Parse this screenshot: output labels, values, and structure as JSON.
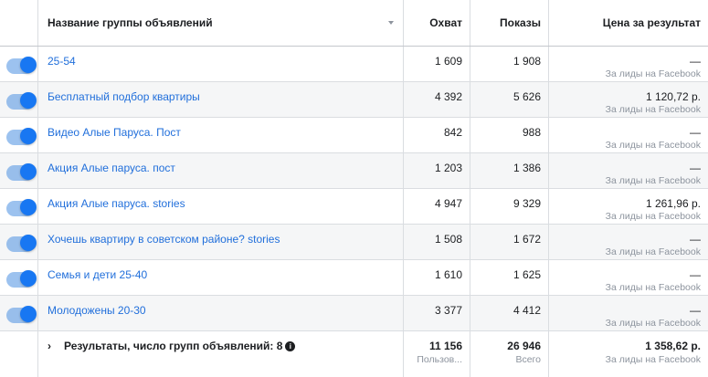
{
  "header": {
    "name": "Название группы объявлений",
    "reach": "Охват",
    "impressions": "Показы",
    "cost": "Цена за результат"
  },
  "rows": [
    {
      "name": "25-54",
      "reach": "1 609",
      "impressions": "1 908",
      "cost": "—",
      "cost_sub": "За лиды на Facebook"
    },
    {
      "name": "Бесплатный подбор квартиры",
      "reach": "4 392",
      "impressions": "5 626",
      "cost": "1 120,72 р.",
      "cost_sub": "За лиды на Facebook"
    },
    {
      "name": "Видео Алые Паруса. Пост",
      "reach": "842",
      "impressions": "988",
      "cost": "—",
      "cost_sub": "За лиды на Facebook"
    },
    {
      "name": "Акция Алые паруса. пост",
      "reach": "1 203",
      "impressions": "1 386",
      "cost": "—",
      "cost_sub": "За лиды на Facebook"
    },
    {
      "name": "Акция Алые паруса. stories",
      "reach": "4 947",
      "impressions": "9 329",
      "cost": "1 261,96 р.",
      "cost_sub": "За лиды на Facebook"
    },
    {
      "name": "Хочешь квартиру в советском районе? stories",
      "reach": "1 508",
      "impressions": "1 672",
      "cost": "—",
      "cost_sub": "За лиды на Facebook"
    },
    {
      "name": "Семья и дети 25-40",
      "reach": "1 610",
      "impressions": "1 625",
      "cost": "—",
      "cost_sub": "За лиды на Facebook"
    },
    {
      "name": "Молодожены 20-30",
      "reach": "3 377",
      "impressions": "4 412",
      "cost": "—",
      "cost_sub": "За лиды на Facebook"
    }
  ],
  "footer": {
    "chevron": "›",
    "label": "Результаты, число групп объявлений: 8",
    "info_icon": "i",
    "reach": "11 156",
    "reach_sub": "Пользов...",
    "impressions": "26 946",
    "impressions_sub": "Всего",
    "cost": "1 358,62 р.",
    "cost_sub": "За лиды на Facebook"
  }
}
